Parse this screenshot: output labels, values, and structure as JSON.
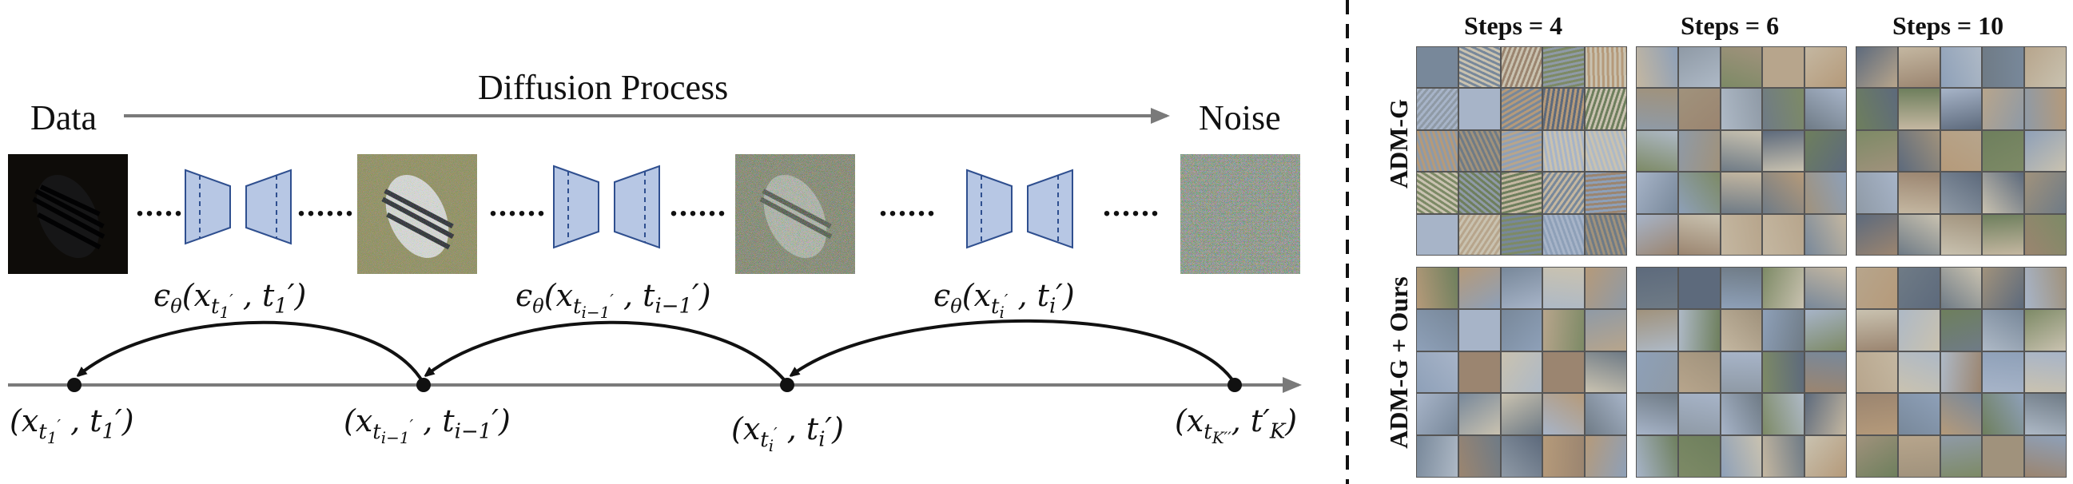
{
  "labels": {
    "data": "Data",
    "noise": "Noise",
    "process": "Diffusion Process",
    "dots": "......"
  },
  "eps_labels": [
    {
      "base": "x",
      "sub": "t",
      "subsub": "1",
      "prime": "′",
      "t": "t",
      "tsub": "1"
    },
    {
      "base": "x",
      "sub": "t",
      "subsub": "i−1",
      "prime": "′",
      "t": "t",
      "tsub": "i−1"
    },
    {
      "base": "x",
      "sub": "t",
      "subsub": "i",
      "prime": "′",
      "t": "t",
      "tsub": "i"
    }
  ],
  "state_labels": [
    {
      "subsub": "1",
      "tsub": "1"
    },
    {
      "subsub": "i−1",
      "tsub": "i−1"
    },
    {
      "subsub": "i",
      "tsub": "i"
    },
    {
      "subsub": "K",
      "tsub": "K"
    }
  ],
  "panel": {
    "column_headers": [
      "Steps = 4",
      "Steps = 6",
      "Steps = 10"
    ],
    "row_labels": [
      "ADM-G",
      "ADM-G + Ours"
    ]
  },
  "colors": {
    "network_fill": "#b7c7e4",
    "network_stroke": "#2f4f8f",
    "axis": "#7a7a7a",
    "arrow": "#111111"
  }
}
